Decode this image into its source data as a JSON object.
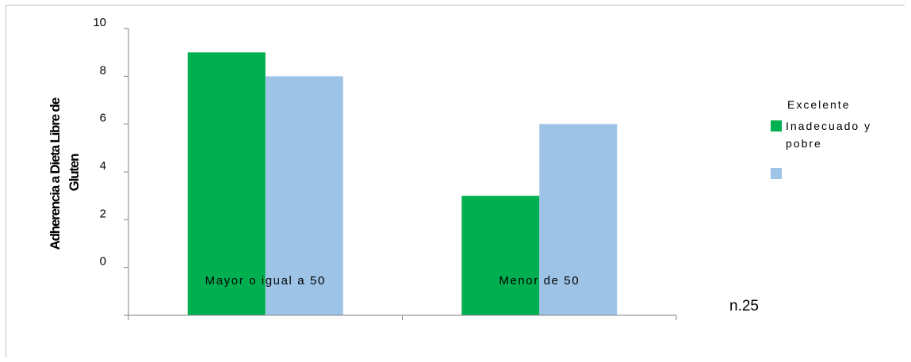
{
  "chart_data": {
    "type": "bar",
    "categories": [
      "Mayor o igual a 50",
      "Menor de 50"
    ],
    "series": [
      {
        "name": "Inadecuado y pobre",
        "values": [
          9,
          3
        ],
        "color": "#00b050"
      },
      {
        "name": "Excelente",
        "values": [
          8,
          6
        ],
        "color": "#9dc3e6"
      }
    ],
    "ylabel_lines": [
      "Adherencia a Dieta Libre de",
      "Gluten"
    ],
    "yticks": [
      0,
      2,
      4,
      6,
      8,
      10
    ],
    "ylim": [
      -2,
      10
    ],
    "grid": false,
    "legend_placement": "right",
    "note": "n.25"
  }
}
